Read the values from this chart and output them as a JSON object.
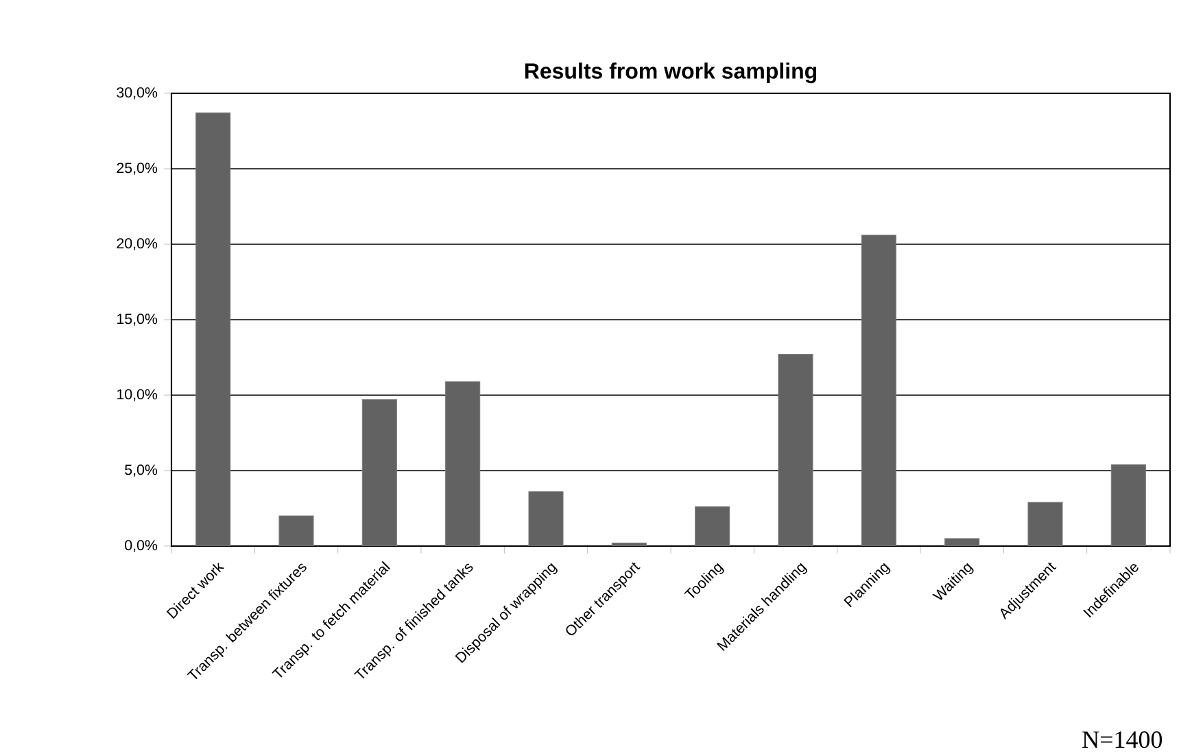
{
  "chart_data": {
    "type": "bar",
    "title": "Results from work sampling",
    "categories": [
      "Direct work",
      "Transp. between fixtures",
      "Transp. to fetch material",
      "Transp. of finished tanks",
      "Disposal of wrapping",
      "Other transport",
      "Tooling",
      "Materials handling",
      "Planning",
      "Waiting",
      "Adjustment",
      "Indefinable"
    ],
    "values": [
      28.7,
      2.0,
      9.7,
      10.9,
      3.6,
      0.2,
      2.6,
      12.7,
      20.6,
      0.5,
      2.9,
      5.4
    ],
    "color": "#626262",
    "ylim": [
      0,
      30
    ],
    "yticks": [
      {
        "value": 0,
        "label": "0,0%"
      },
      {
        "value": 5,
        "label": "5,0%"
      },
      {
        "value": 10,
        "label": "10,0%"
      },
      {
        "value": 15,
        "label": "15,0%"
      },
      {
        "value": 20,
        "label": "20,0%"
      },
      {
        "value": 25,
        "label": "25,0%"
      },
      {
        "value": 30,
        "label": "30,0%"
      }
    ],
    "grid": "y",
    "annotations": [
      "N=1400"
    ]
  }
}
